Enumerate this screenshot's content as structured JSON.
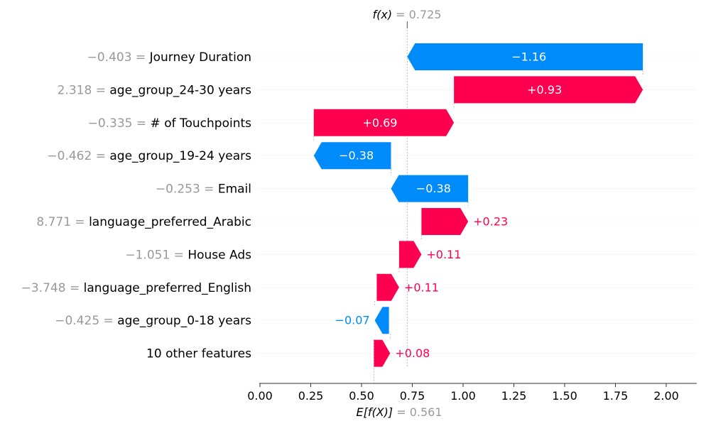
{
  "chart_data": {
    "type": "waterfall",
    "fx_label": "f(x)",
    "fx_eq": " = ",
    "fx_value": "0.725",
    "ex_label": "E[f(X)]",
    "ex_eq": " = ",
    "ex_value": "0.561",
    "fx": 0.725,
    "base_value": 0.561,
    "xlim": [
      0.0,
      2.15
    ],
    "xticks": [
      0.0,
      0.25,
      0.5,
      0.75,
      1.0,
      1.25,
      1.5,
      1.75,
      2.0
    ],
    "xtick_labels": [
      "0.00",
      "0.25",
      "0.50",
      "0.75",
      "1.00",
      "1.25",
      "1.50",
      "1.75",
      "2.00"
    ],
    "rows": [
      {
        "value_text": "−0.403 = ",
        "feature": "Journey Duration",
        "start": 1.885,
        "end": 0.725,
        "label": "−1.16"
      },
      {
        "value_text": "2.318 = ",
        "feature": "age_group_24-30 years",
        "start": 0.955,
        "end": 1.885,
        "label": "+0.93"
      },
      {
        "value_text": "−0.335 = ",
        "feature": "# of Touchpoints",
        "start": 0.265,
        "end": 0.955,
        "label": "+0.69"
      },
      {
        "value_text": "−0.462 = ",
        "feature": "age_group_19-24 years",
        "start": 0.645,
        "end": 0.265,
        "label": "−0.38"
      },
      {
        "value_text": "−0.253 = ",
        "feature": "Email",
        "start": 1.025,
        "end": 0.645,
        "label": "−0.38"
      },
      {
        "value_text": "8.771 = ",
        "feature": "language_preferred_Arabic",
        "start": 0.795,
        "end": 1.025,
        "label": "+0.23"
      },
      {
        "value_text": "−1.051 = ",
        "feature": "House Ads",
        "start": 0.685,
        "end": 0.795,
        "label": "+0.11"
      },
      {
        "value_text": "−3.748 = ",
        "feature": "language_preferred_English",
        "start": 0.575,
        "end": 0.685,
        "label": "+0.11"
      },
      {
        "value_text": "−0.425 = ",
        "feature": "age_group_0-18 years",
        "start": 0.635,
        "end": 0.565,
        "label": "−0.07"
      },
      {
        "value_text": "",
        "feature": "10 other features",
        "start": 0.561,
        "end": 0.641,
        "label": "+0.08"
      }
    ],
    "colors": {
      "positive": "#ff0051",
      "negative": "#008bfb",
      "grey_text": "#999999",
      "axis": "#333333",
      "grid": "#dddddd"
    }
  }
}
